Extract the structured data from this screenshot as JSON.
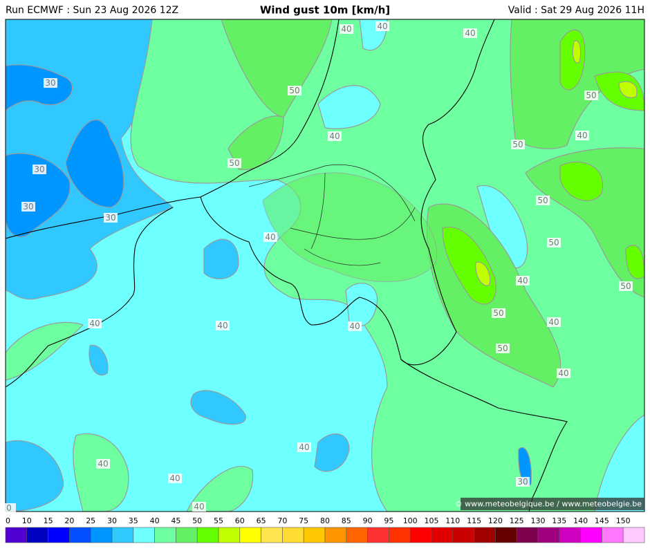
{
  "header": {
    "run": "Run ECMWF : Sun 23 Aug 2026 12Z",
    "title": "Wind gust 10m [km/h]",
    "valid": "Valid : Sat 29 Aug 2026 11H"
  },
  "map": {
    "contour_labels": [
      40,
      40,
      40,
      30,
      50,
      50,
      40,
      50,
      40,
      30,
      50,
      30,
      30,
      50,
      40,
      50,
      40,
      50,
      40,
      40,
      50,
      40,
      40,
      50,
      40,
      40,
      40,
      40,
      30,
      40,
      0
    ],
    "credit": "© www.meteobelgique.be / www.meteobelgie.be"
  },
  "colorbar": {
    "ticks": [
      0,
      10,
      15,
      20,
      25,
      30,
      35,
      40,
      45,
      50,
      55,
      60,
      65,
      70,
      75,
      80,
      85,
      90,
      95,
      100,
      105,
      110,
      115,
      120,
      125,
      130,
      135,
      140,
      145,
      150
    ],
    "colors": [
      "#5000d0",
      "#0000c0",
      "#0000ff",
      "#0050ff",
      "#0096ff",
      "#30c8ff",
      "#6effff",
      "#6effa0",
      "#64f064",
      "#64ff00",
      "#c0ff00",
      "#ffff00",
      "#ffe650",
      "#ffdc32",
      "#ffc800",
      "#ff9600",
      "#ff6400",
      "#ff3232",
      "#ff3200",
      "#ff0000",
      "#e00000",
      "#c80000",
      "#a00000",
      "#640000",
      "#800050",
      "#a00080",
      "#d000c0",
      "#ff00ff",
      "#ff78ff",
      "#ffc8ff"
    ]
  }
}
